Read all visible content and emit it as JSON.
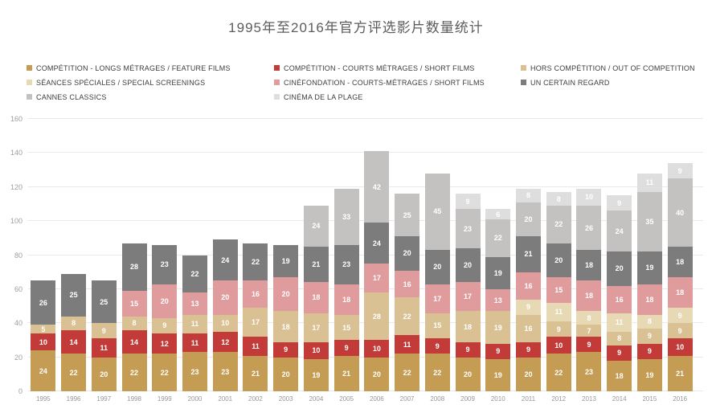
{
  "title": "1995年至2016年官方评选影片数量统计",
  "chart_data": {
    "type": "bar",
    "stacked": true,
    "title": "1995年至2016年官方评选影片数量统计",
    "xlabel": "",
    "ylabel": "",
    "ylim": [
      0,
      160
    ],
    "yticks": [
      0,
      20,
      40,
      60,
      80,
      100,
      120,
      140,
      160
    ],
    "grid": true,
    "legend_position": "top",
    "categories": [
      "1995",
      "1996",
      "1997",
      "1998",
      "1999",
      "2000",
      "2001",
      "2002",
      "2003",
      "2004",
      "2005",
      "2006",
      "2007",
      "2008",
      "2009",
      "2010",
      "2011",
      "2012",
      "2013",
      "2014",
      "2015",
      "2016"
    ],
    "series": [
      {
        "name": "COMPÉTITION - LONGS MÉTRAGES / FEATURE FILMS",
        "color": "#c59c53",
        "values": [
          24,
          22,
          20,
          22,
          22,
          23,
          23,
          21,
          20,
          19,
          21,
          20,
          22,
          22,
          20,
          19,
          20,
          22,
          23,
          18,
          19,
          21
        ]
      },
      {
        "name": "COMPÉTITION - COURTS MÉTRAGES / SHORT FILMS",
        "color": "#c23b38",
        "values": [
          10,
          14,
          11,
          14,
          12,
          11,
          12,
          11,
          9,
          10,
          9,
          10,
          11,
          9,
          9,
          9,
          9,
          10,
          9,
          9,
          9,
          10
        ]
      },
      {
        "name": "HORS COMPÉTITION / OUT OF COMPETITION",
        "color": "#d9c193",
        "values": [
          5,
          8,
          9,
          8,
          9,
          11,
          10,
          17,
          18,
          17,
          15,
          28,
          22,
          15,
          18,
          19,
          16,
          9,
          7,
          8,
          9,
          9
        ]
      },
      {
        "name": "SÉANCES SPÉCIALES / SPECIAL SCREENINGS",
        "color": "#e7d9b4",
        "values": [
          0,
          0,
          0,
          0,
          0,
          0,
          0,
          0,
          0,
          0,
          0,
          0,
          0,
          0,
          0,
          0,
          9,
          11,
          8,
          11,
          8,
          9
        ]
      },
      {
        "name": "CINÉFONDATION - COURTS-MÉTRAGES / SHORT FILMS",
        "color": "#e09c9d",
        "values": [
          0,
          0,
          0,
          15,
          20,
          13,
          20,
          16,
          20,
          18,
          18,
          17,
          16,
          17,
          17,
          13,
          16,
          15,
          18,
          16,
          18,
          18
        ]
      },
      {
        "name": "UN CERTAIN REGARD",
        "color": "#7c7c7c",
        "values": [
          26,
          25,
          25,
          28,
          23,
          22,
          24,
          22,
          19,
          21,
          23,
          24,
          20,
          20,
          20,
          19,
          21,
          20,
          18,
          20,
          19,
          18
        ]
      },
      {
        "name": "CANNES CLASSICS",
        "color": "#c3c2c1",
        "values": [
          0,
          0,
          0,
          0,
          0,
          0,
          0,
          0,
          0,
          24,
          33,
          42,
          25,
          45,
          23,
          22,
          20,
          22,
          26,
          24,
          35,
          40
        ]
      },
      {
        "name": "CINÉMA DE LA PLAGE",
        "color": "#dedede",
        "values": [
          0,
          0,
          0,
          0,
          0,
          0,
          0,
          0,
          0,
          0,
          0,
          0,
          0,
          0,
          9,
          6,
          8,
          8,
          10,
          9,
          11,
          9
        ]
      }
    ]
  }
}
